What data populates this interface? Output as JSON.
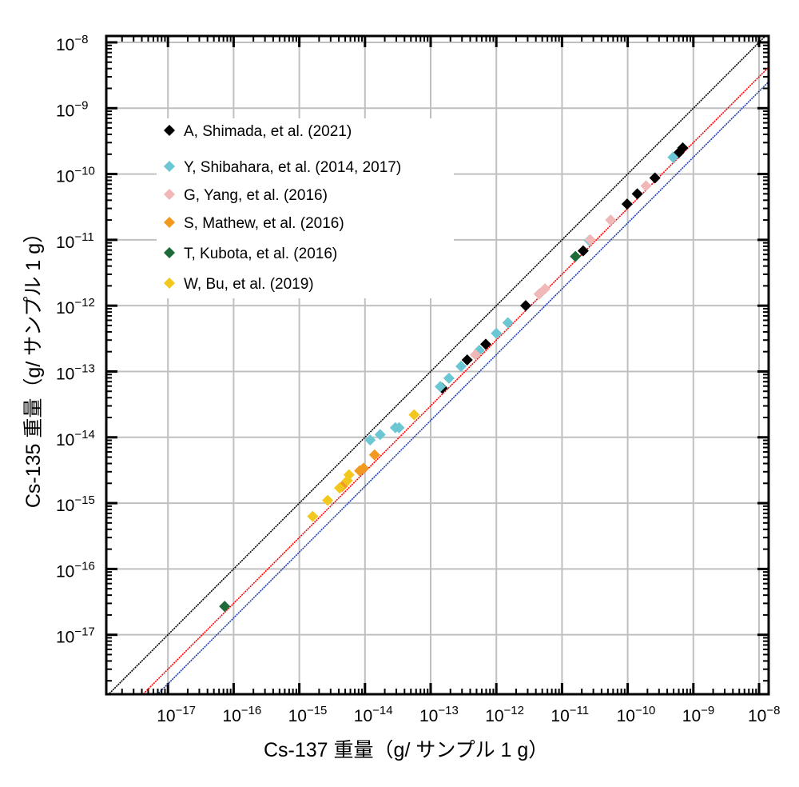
{
  "chart_data": {
    "type": "scatter",
    "xscale": "log",
    "yscale": "log",
    "xlabel": "Cs-137 重量（g/ サンプル 1 g）",
    "ylabel": "Cs-135 重量（g/ サンプル 1 g）",
    "xlim": [
      1.15e-18,
      1.4e-08
    ],
    "ylim": [
      1.25e-18,
      1.25e-08
    ],
    "xticks": [
      -17,
      -16,
      -15,
      -14,
      -13,
      -12,
      -11,
      -10,
      -9,
      -8
    ],
    "yticks": [
      -17,
      -16,
      -15,
      -14,
      -13,
      -12,
      -11,
      -10,
      -9,
      -8
    ],
    "grid": true,
    "legend_position": "top-left",
    "reference_lines": [
      {
        "ratio": 1,
        "color": "#000000"
      },
      {
        "ratio": 0.3,
        "color": "#ff0000"
      },
      {
        "ratio": 0.18,
        "color": "#1f3fa8"
      }
    ],
    "series": [
      {
        "name": "A, Shimada, et al. (2021)",
        "color": "#000000",
        "x": [
          6.9e-10,
          6e-10,
          2.6e-10,
          1.4e-10,
          9.8e-11,
          2.1e-11,
          2.8e-12,
          6.9e-13,
          3.6e-13,
          1.5e-13
        ],
        "y": [
          2.5e-10,
          2.1e-10,
          8.7e-11,
          5e-11,
          3.5e-11,
          6.8e-12,
          1e-12,
          2.6e-13,
          1.5e-13,
          5.6e-14
        ]
      },
      {
        "name": "Y, Shibahara, et al. (2014, 2017)",
        "color": "#6cc7d4",
        "x": [
          4.9e-10,
          2.6e-11,
          4.5e-12,
          1.5e-12,
          1e-12,
          5.5e-13,
          2.9e-13,
          1.9e-13,
          1.4e-13,
          3.3e-14,
          2.9e-14,
          1.7e-14,
          1.2e-14
        ],
        "y": [
          1.8e-10,
          9.8e-12,
          1.5e-12,
          5.5e-13,
          3.8e-13,
          2.1e-13,
          1.2e-13,
          7.9e-14,
          5.9e-14,
          1.4e-14,
          1.4e-14,
          1.1e-14,
          9.1e-15
        ]
      },
      {
        "name": "G, Yang, et al. (2016)",
        "color": "#f2b8b8",
        "x": [
          1.9e-10,
          5.5e-11,
          2.7e-11,
          5.5e-12,
          4.5e-12,
          4.8e-13
        ],
        "y": [
          6.6e-11,
          2e-11,
          1e-11,
          1.8e-12,
          1.5e-12,
          1.8e-13
        ]
      },
      {
        "name": "S, Mathew, et al. (2016)",
        "color": "#f29a1f",
        "x": [
          1.4e-14,
          9.5e-15,
          8.3e-15,
          4.5e-15
        ],
        "y": [
          5.4e-15,
          3.4e-15,
          3.1e-15,
          1.8e-15
        ]
      },
      {
        "name": "T, Kubota, et al. (2016)",
        "color": "#1e6b3a",
        "x": [
          1.6e-11,
          7.3e-17
        ],
        "y": [
          5.6e-12,
          2.7e-17
        ]
      },
      {
        "name": "W, Bu, et al. (2019)",
        "color": "#f2c81e",
        "x": [
          5.6e-14,
          5.7e-15,
          5.4e-15,
          4.1e-15,
          2.7e-15,
          1.6e-15
        ],
        "y": [
          2.2e-14,
          2.7e-15,
          2.2e-15,
          1.7e-15,
          1.1e-15,
          6.3e-16
        ]
      }
    ]
  }
}
